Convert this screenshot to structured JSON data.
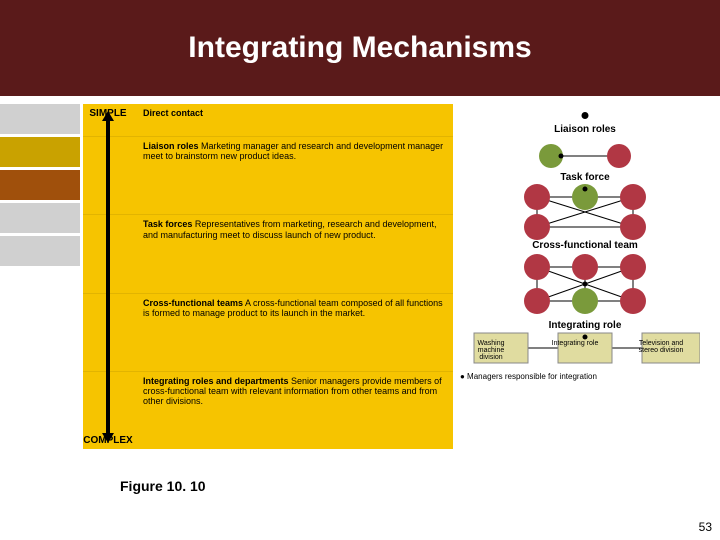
{
  "title": "Integrating Mechanisms",
  "figure_label": "Figure 10. 10",
  "page_number": "53",
  "side_block_colors": [
    "#d0d0d0",
    "#c9a200",
    "#a0500c",
    "#d0d0d0",
    "#d0d0d0"
  ],
  "arrow": {
    "top": "SIMPLE",
    "bottom": "COMPLEX"
  },
  "rows": [
    {
      "heading": "Direct contact",
      "body": ""
    },
    {
      "heading": "Liaison roles",
      "body": "Marketing manager and research and development manager meet to brainstorm new product ideas."
    },
    {
      "heading": "Task forces",
      "body": "Representatives from marketing, research and development, and manufacturing meet to discuss launch of new product."
    },
    {
      "heading": "Cross-functional teams",
      "body": "A cross-functional team composed of all functions is formed to manage product to its launch in the market."
    },
    {
      "heading": "Integrating roles and departments",
      "body": "Senior managers provide members of cross-functional team with relevant information from other teams and from other divisions."
    }
  ],
  "diagram": {
    "liaison_label": "Liaison roles",
    "taskforce_label": "Task force",
    "cft_label": "Cross-functional team",
    "introle_label": "Integrating role",
    "introle_left": "Washing machine division",
    "introle_center": "Integrating role",
    "introle_right": "Television and stereo division",
    "legend": "● Managers responsible for integration",
    "colors": {
      "green": "#7a9a3b",
      "red": "#b13744",
      "line": "#000000"
    }
  }
}
